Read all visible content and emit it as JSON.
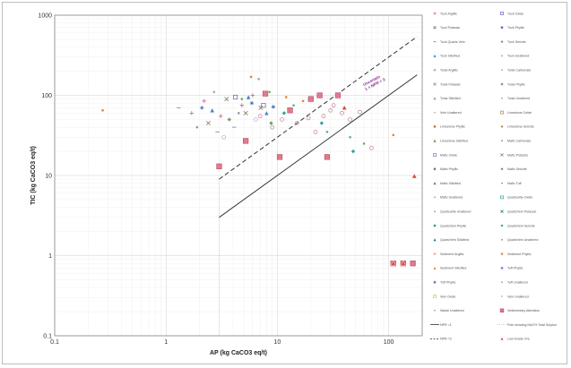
{
  "chart_data": {
    "type": "scatter",
    "title": "",
    "xlabel": "AP (kg CaCO3 eq/t)",
    "ylabel": "TIC (kg CaCO3 eq/t)",
    "x_scale": "log",
    "y_scale": "log",
    "xlim": [
      0.1,
      200
    ],
    "ylim": [
      0.1,
      1000
    ],
    "x_ticks": [
      "0.1",
      "1",
      "10",
      "100"
    ],
    "y_ticks": [
      "0.1",
      "1",
      "10",
      "100",
      "1000"
    ],
    "grid": true,
    "legend_position": "right",
    "colors": {
      "line": "#333333",
      "purple": "#8e2c8e",
      "pink": "#e07a8c",
      "orange": "#e8823a",
      "red": "#d94a3a"
    },
    "lines": [
      {
        "name": "NPR =1",
        "style": "solid",
        "ratio": 1,
        "x": [
          3,
          180
        ]
      },
      {
        "name": "NPR =3",
        "style": "dashed",
        "ratio": 3,
        "x": [
          3,
          180
        ]
      }
    ],
    "vertical_line": {
      "x": 3
    },
    "annotation": {
      "text": "Uncertain\n1 < NPR < 3",
      "x": 60,
      "y": 130
    },
    "series": [
      {
        "name": "Tuck Argillic",
        "marker": "plus",
        "color": "#c06090",
        "points": [
          [
            1.7,
            60
          ],
          [
            2.2,
            85
          ],
          [
            3.1,
            55
          ],
          [
            4.8,
            75
          ],
          [
            6,
            100
          ]
        ]
      },
      {
        "name": "Tuck Potassic",
        "marker": "x",
        "color": "#8a7a60",
        "points": [
          [
            2.4,
            45
          ],
          [
            3.5,
            90
          ],
          [
            5.2,
            60
          ],
          [
            7.1,
            70
          ]
        ]
      },
      {
        "name": "Tuck Quartz-Vein",
        "marker": "dash",
        "color": "#7a9ab0",
        "points": [
          [
            1.3,
            70
          ],
          [
            2.9,
            35
          ],
          [
            4.1,
            40
          ]
        ]
      },
      {
        "name": "Tuck Silicified",
        "marker": "triangle",
        "color": "#4a80c0",
        "points": [
          [
            2.6,
            65
          ],
          [
            5.5,
            95
          ],
          [
            8,
            60
          ]
        ]
      },
      {
        "name": "Tuck Unaltered",
        "marker": "circle-open",
        "color": "#b0b0d0",
        "points": [
          [
            3.3,
            30
          ],
          [
            6.4,
            50
          ]
        ]
      },
      {
        "name": "Tuck Oxide",
        "marker": "square-open",
        "color": "#6060c0",
        "points": [
          [
            4.2,
            95
          ],
          [
            7.5,
            75
          ]
        ]
      },
      {
        "name": "Tuck Phyllic",
        "marker": "star",
        "color": "#3a6ab0",
        "points": [
          [
            2.1,
            70
          ],
          [
            5.9,
            80
          ],
          [
            9.2,
            72
          ]
        ]
      },
      {
        "name": "Tuck Sericite",
        "marker": "diamond",
        "color": "#70a070",
        "points": [
          [
            3.7,
            50
          ],
          [
            8.8,
            45
          ]
        ]
      },
      {
        "name": "Tuck Unaltered (2)",
        "marker": "dot",
        "color": "#9a9aa0",
        "points": [
          [
            1.9,
            40
          ],
          [
            4.5,
            60
          ]
        ]
      },
      {
        "name": "Tuck Oxide (2)",
        "marker": "dot",
        "color": "#c0a0a0",
        "points": [
          [
            6.8,
            160
          ],
          [
            2.7,
            110
          ]
        ]
      },
      {
        "name": "Sedimentary Alteration",
        "marker": "square-filled",
        "color": "#e07a8c",
        "points": [
          [
            3,
            13
          ],
          [
            5.2,
            27
          ],
          [
            7.8,
            105
          ],
          [
            10.5,
            17
          ],
          [
            13,
            65
          ],
          [
            20,
            90
          ],
          [
            24,
            100
          ],
          [
            28,
            17
          ],
          [
            35,
            100
          ],
          [
            110,
            0.8
          ],
          [
            135,
            0.8
          ],
          [
            165,
            0.8
          ]
        ]
      },
      {
        "name": "Low-Grade Ore",
        "marker": "triangle-filled",
        "color": "#d94a3a",
        "points": [
          [
            40,
            70
          ],
          [
            170,
            9.8
          ],
          [
            110,
            0.8
          ],
          [
            135,
            0.8
          ]
        ]
      },
      {
        "name": "Other Carbonate",
        "marker": "circle-open",
        "color": "#c08090",
        "points": [
          [
            7,
            55
          ],
          [
            9,
            40
          ],
          [
            11,
            50
          ],
          [
            15,
            45
          ],
          [
            19,
            52
          ],
          [
            22,
            35
          ],
          [
            26,
            55
          ],
          [
            30,
            65
          ],
          [
            32,
            75
          ],
          [
            38,
            60
          ],
          [
            45,
            50
          ],
          [
            55,
            62
          ],
          [
            70,
            22
          ]
        ]
      },
      {
        "name": "Other Orange",
        "marker": "dot",
        "color": "#e8823a",
        "points": [
          [
            0.27,
            65
          ],
          [
            110,
            32
          ],
          [
            5.8,
            170
          ],
          [
            12,
            95
          ],
          [
            17,
            85
          ]
        ]
      },
      {
        "name": "Other Green",
        "marker": "dot",
        "color": "#60b070",
        "points": [
          [
            4.8,
            90
          ],
          [
            8.5,
            110
          ],
          [
            14,
            75
          ],
          [
            45,
            30
          ],
          [
            28,
            35
          ],
          [
            60,
            25
          ]
        ]
      },
      {
        "name": "Other Teal",
        "marker": "diamond",
        "color": "#30a0a0",
        "points": [
          [
            48,
            20
          ],
          [
            11.5,
            60
          ],
          [
            25,
            45
          ]
        ]
      }
    ]
  },
  "legend": {
    "items": [
      {
        "label": "Tuck Argillic",
        "marker": "plus",
        "color": "#c06090"
      },
      {
        "label": "Tuck Oxide",
        "marker": "square-open",
        "color": "#6060c0"
      },
      {
        "label": "Tuck Potassic",
        "marker": "x",
        "color": "#8a7a60"
      },
      {
        "label": "Tuck Phyllic",
        "marker": "star",
        "color": "#3a6ab0"
      },
      {
        "label": "Tuck Quartz-Vein",
        "marker": "dash",
        "color": "#7a9ab0"
      },
      {
        "label": "Tuck Sericite",
        "marker": "diamond",
        "color": "#70a070"
      },
      {
        "label": "Tuck Silicified",
        "marker": "triangle",
        "color": "#4a80c0"
      },
      {
        "label": "Tuck Unaltered",
        "marker": "dot",
        "color": "#9a9aa0"
      },
      {
        "label": "Tuisk Argillic",
        "marker": "plus",
        "color": "#c08aa0"
      },
      {
        "label": "Tuisk Carbonate",
        "marker": "dot",
        "color": "#c0a0a0"
      },
      {
        "label": "Tuisk Potassic",
        "marker": "x",
        "color": "#a08070"
      },
      {
        "label": "Tuisk Phyllic",
        "marker": "star",
        "color": "#a08080"
      },
      {
        "label": "Tuisk Silicified",
        "marker": "triangle",
        "color": "#a09080"
      },
      {
        "label": "Tuisk Unaltered",
        "marker": "dot",
        "color": "#b0a0a0"
      },
      {
        "label": "Vein Unaltered",
        "marker": "dot",
        "color": "#b0b0b0"
      },
      {
        "label": "Limestone Oxide",
        "marker": "square-open",
        "color": "#b08040"
      },
      {
        "label": "Limestone Phyllic",
        "marker": "star",
        "color": "#b07030"
      },
      {
        "label": "Limestone Sericite",
        "marker": "diamond",
        "color": "#b09040"
      },
      {
        "label": "Limestone Silicified",
        "marker": "triangle",
        "color": "#a07040"
      },
      {
        "label": "Mafic Carbonate",
        "marker": "dot",
        "color": "#a09060"
      },
      {
        "label": "Mafic Oxide",
        "marker": "square-open",
        "color": "#8a6ab0"
      },
      {
        "label": "Mafic Potassic",
        "marker": "x",
        "color": "#8a70a0"
      },
      {
        "label": "Mafic Phyllic",
        "marker": "star",
        "color": "#7a60a0"
      },
      {
        "label": "Mafic Sericite",
        "marker": "diamond",
        "color": "#8a70b0"
      },
      {
        "label": "Mafic Silicified",
        "marker": "triangle",
        "color": "#7a6090"
      },
      {
        "label": "Mafic Tuff",
        "marker": "dot",
        "color": "#9a80a0"
      },
      {
        "label": "Mafic Unaltered",
        "marker": "dot",
        "color": "#a090b0"
      },
      {
        "label": "Quartzarite Oxide",
        "marker": "square-open",
        "color": "#30a0a0"
      },
      {
        "label": "Quartzarite Unaltered",
        "marker": "dot",
        "color": "#70b0b0"
      },
      {
        "label": "QuartzVein Potassic",
        "marker": "x",
        "color": "#408080"
      },
      {
        "label": "QuartzVein Phyllic",
        "marker": "star",
        "color": "#2a8a8a"
      },
      {
        "label": "QuartzVein Sericite",
        "marker": "diamond",
        "color": "#30a090"
      },
      {
        "label": "QuartzVein Silicified",
        "marker": "triangle",
        "color": "#208080"
      },
      {
        "label": "QuartzVein Unaltered",
        "marker": "dot",
        "color": "#60a0a0"
      },
      {
        "label": "Sediment Argillic",
        "marker": "plus",
        "color": "#e8a040"
      },
      {
        "label": "Sediment Phyllic",
        "marker": "star",
        "color": "#e09030"
      },
      {
        "label": "Sediment Silicified",
        "marker": "triangle",
        "color": "#d09040"
      },
      {
        "label": "Tuff Phyllic",
        "marker": "star",
        "color": "#6080c0"
      },
      {
        "label": "Tuff Phyllic",
        "marker": "star",
        "color": "#5070b0"
      },
      {
        "label": "Tuff Unaltered",
        "marker": "dot",
        "color": "#80a0c0"
      },
      {
        "label": "Vein Oxide",
        "marker": "square-open",
        "color": "#e0c040"
      },
      {
        "label": "Vein Unaltered",
        "marker": "dot",
        "color": "#d0b050"
      },
      {
        "label": "Waste Unaltered",
        "marker": "dot",
        "color": "#a0a0a0"
      },
      {
        "label": "Sedimentary Alteration",
        "marker": "square-filled",
        "color": "#e07a8c"
      },
      {
        "label": "NPR =1",
        "marker": "line-solid",
        "color": "#333333"
      },
      {
        "label": "Pole showing NAG% Total Sulphur",
        "marker": "line-dotted",
        "color": "#999999"
      },
      {
        "label": "NPR =3",
        "marker": "line-dashed",
        "color": "#333333"
      },
      {
        "label": "Low-Grade Ore",
        "marker": "triangle-filled",
        "color": "#d94a3a"
      }
    ]
  }
}
